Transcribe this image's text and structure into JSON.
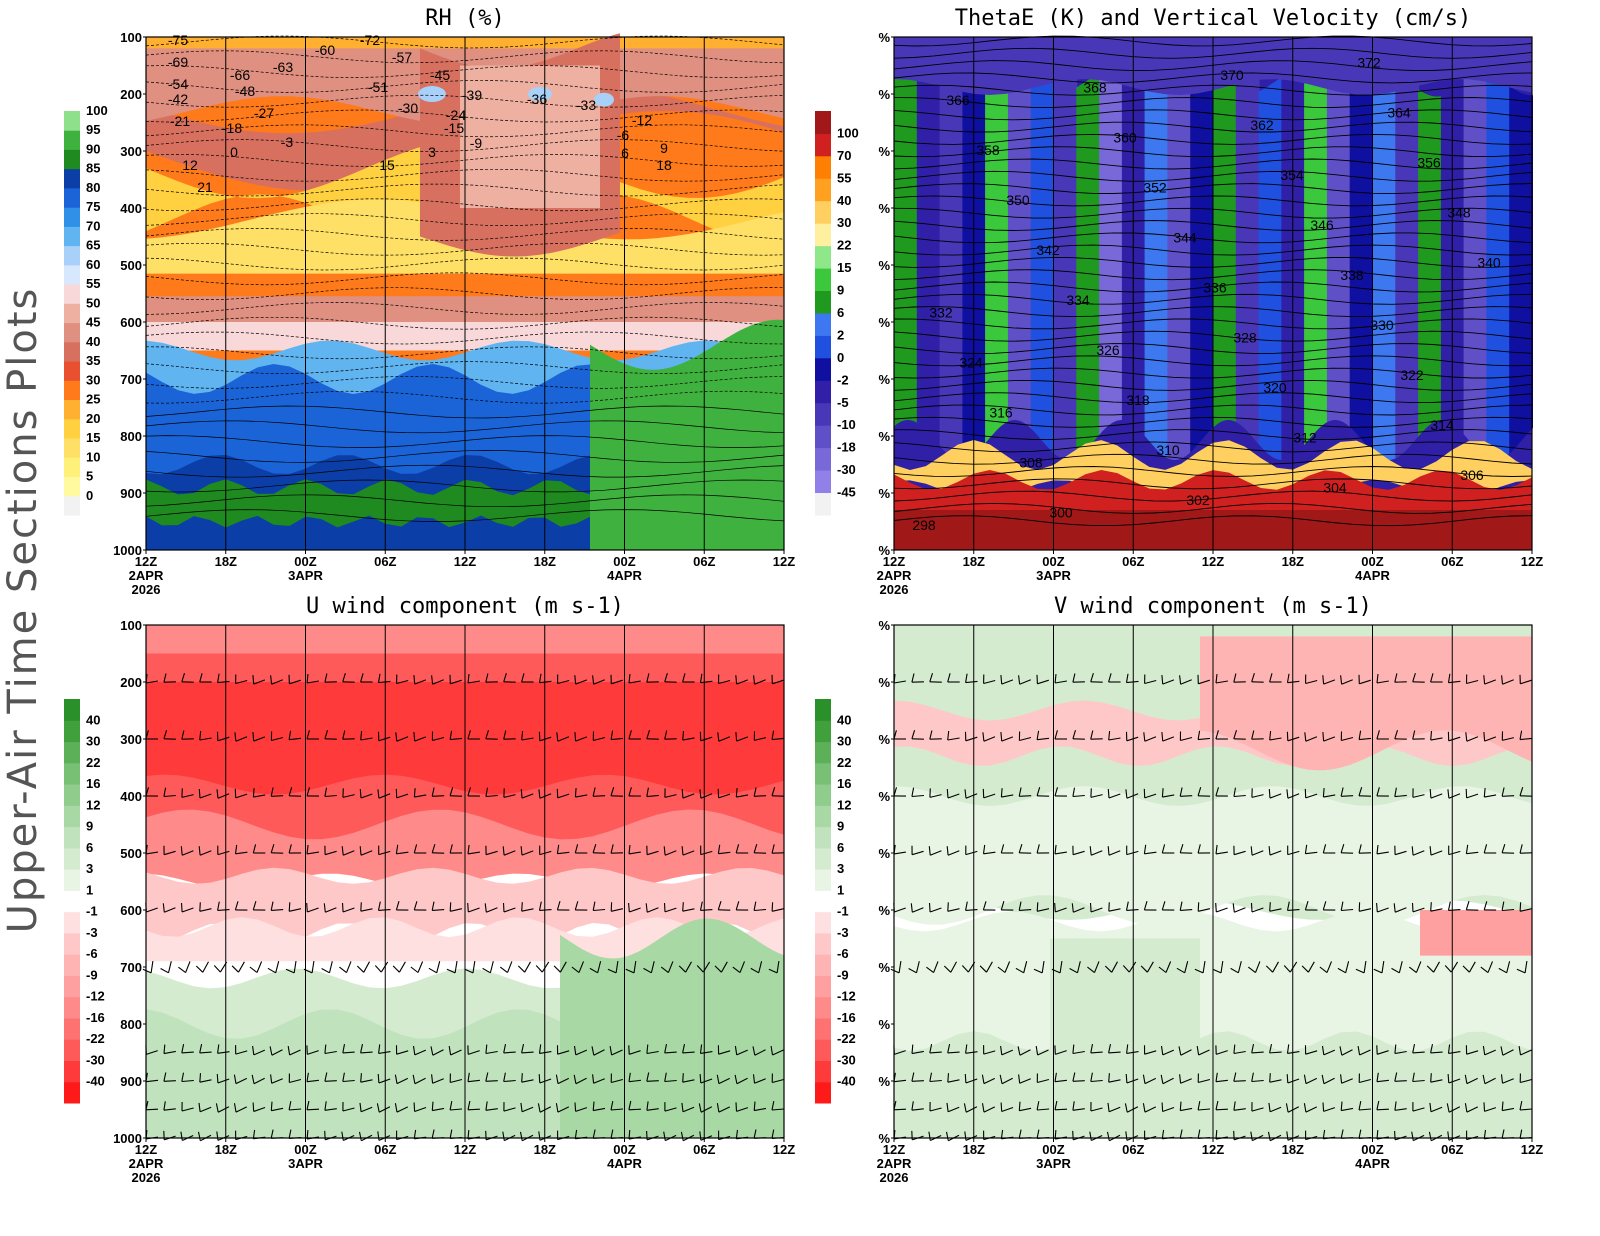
{
  "side_title": "Upper-Air Time Sections Plots",
  "date_labels": [
    "2APR",
    "2026"
  ],
  "chart_data": [
    {
      "type": "heatmap",
      "title": "RH (%)",
      "time_ticks": [
        "12Z",
        "18Z",
        "00Z",
        "06Z",
        "12Z",
        "18Z",
        "00Z",
        "06Z",
        "12Z"
      ],
      "day_labels": [
        "3APR",
        "4APR"
      ],
      "y_ticks": [
        "100",
        "200",
        "300",
        "400",
        "500",
        "600",
        "700",
        "800",
        "900",
        "1000"
      ],
      "y_unit": "hPa",
      "colorbar": {
        "labels": [
          "0",
          "5",
          "10",
          "15",
          "20",
          "25",
          "30",
          "35",
          "40",
          "45",
          "50",
          "55",
          "60",
          "65",
          "70",
          "75",
          "80",
          "85",
          "90",
          "95",
          "100"
        ],
        "colors": [
          "#f2f2f2",
          "#fffaa0",
          "#fff07a",
          "#ffe066",
          "#ffd040",
          "#ffb030",
          "#ff7a1a",
          "#e85030",
          "#d87060",
          "#e09080",
          "#eeb0a0",
          "#f8d8d8",
          "#d8e8fc",
          "#a8d0f8",
          "#60b4f0",
          "#3090e8",
          "#1a64d8",
          "#0c3ea8",
          "#1f8a1f",
          "#3fb13f",
          "#8ee08a"
        ]
      },
      "temperature_contour_labels": [
        "-75",
        "-72",
        "-69",
        "-66",
        "-63",
        "-60",
        "-57",
        "-54",
        "-51",
        "-48",
        "-45",
        "-42",
        "-39",
        "-36",
        "-33",
        "-30",
        "-27",
        "-24",
        "-21",
        "-18",
        "-15",
        "-12",
        "-9",
        "-6",
        "-3",
        "0",
        "3",
        "6",
        "9",
        "12",
        "15",
        "18",
        "21"
      ]
    },
    {
      "type": "heatmap",
      "title": "ThetaE (K) and Vertical Velocity (cm/s)",
      "time_ticks": [
        "12Z",
        "18Z",
        "00Z",
        "06Z",
        "12Z",
        "18Z",
        "00Z",
        "06Z",
        "12Z"
      ],
      "day_labels": [
        "3APR",
        "4APR"
      ],
      "y_ticks": [
        "%",
        "%",
        "%",
        "%",
        "%",
        "%",
        "%",
        "%",
        "%",
        "%"
      ],
      "colorbar": {
        "labels": [
          "-45",
          "-30",
          "-18",
          "-10",
          "-5",
          "-2",
          "0",
          "2",
          "6",
          "9",
          "15",
          "22",
          "30",
          "40",
          "55",
          "70",
          "100"
        ],
        "colors": [
          "#f2f2f2",
          "#9080e8",
          "#7868d8",
          "#6050c8",
          "#4838b8",
          "#3020a8",
          "#1010a0",
          "#2050e0",
          "#3e78f0",
          "#1f9a1f",
          "#3cc83c",
          "#8ee88a",
          "#fff0a0",
          "#ffd060",
          "#ffa020",
          "#ff8000",
          "#d02020",
          "#a01818"
        ]
      },
      "thetae_contour_labels": [
        "298",
        "300",
        "302",
        "304",
        "306",
        "308",
        "310",
        "312",
        "314",
        "316",
        "318",
        "320",
        "322",
        "324",
        "326",
        "328",
        "330",
        "332",
        "334",
        "336",
        "338",
        "340",
        "342",
        "344",
        "346",
        "348",
        "350",
        "352",
        "354",
        "356",
        "358",
        "360",
        "362",
        "364",
        "366",
        "368",
        "370",
        "372"
      ]
    },
    {
      "type": "heatmap",
      "title": "U wind component (m s-1)",
      "time_ticks": [
        "12Z",
        "18Z",
        "00Z",
        "06Z",
        "12Z",
        "18Z",
        "00Z",
        "06Z",
        "12Z"
      ],
      "day_labels": [
        "3APR",
        "4APR"
      ],
      "y_ticks": [
        "100",
        "200",
        "300",
        "400",
        "500",
        "600",
        "700",
        "800",
        "900",
        "1000"
      ],
      "colorbar": {
        "labels": [
          "40",
          "30",
          "22",
          "16",
          "12",
          "9",
          "6",
          "3",
          "1",
          "-1",
          "-3",
          "-6",
          "-9",
          "-12",
          "-16",
          "-22",
          "-30",
          "-40"
        ],
        "colors": [
          "#ff1a1a",
          "#ff3a3a",
          "#ff5a5a",
          "#ff7272",
          "#ff8a8a",
          "#ffa0a0",
          "#ffb4b4",
          "#ffc8c8",
          "#ffe0e0",
          "#ffffff",
          "#e8f4e4",
          "#d4ebd0",
          "#c0e2bc",
          "#a8d8a4",
          "#90cc8c",
          "#78c074",
          "#5cb058",
          "#40a03c",
          "#2a902a"
        ]
      },
      "barb_levels": [
        "200",
        "300",
        "400",
        "500",
        "600",
        "700",
        "850",
        "900",
        "950",
        "1000"
      ]
    },
    {
      "type": "heatmap",
      "title": "V wind component (m s-1)",
      "time_ticks": [
        "12Z",
        "18Z",
        "00Z",
        "06Z",
        "12Z",
        "18Z",
        "00Z",
        "06Z",
        "12Z"
      ],
      "day_labels": [
        "3APR",
        "4APR"
      ],
      "y_ticks": [
        "%",
        "%",
        "%",
        "%",
        "%",
        "%",
        "%",
        "%",
        "%",
        "%"
      ],
      "colorbar": {
        "labels": [
          "40",
          "30",
          "22",
          "16",
          "12",
          "9",
          "6",
          "3",
          "1",
          "-1",
          "-3",
          "-6",
          "-9",
          "-12",
          "-16",
          "-22",
          "-30",
          "-40"
        ],
        "colors": [
          "#ff1a1a",
          "#ff3a3a",
          "#ff5a5a",
          "#ff7272",
          "#ff8a8a",
          "#ffa0a0",
          "#ffb4b4",
          "#ffc8c8",
          "#ffe0e0",
          "#ffffff",
          "#e8f4e4",
          "#d4ebd0",
          "#c0e2bc",
          "#a8d8a4",
          "#90cc8c",
          "#78c074",
          "#5cb058",
          "#40a03c",
          "#2a902a"
        ]
      }
    }
  ]
}
